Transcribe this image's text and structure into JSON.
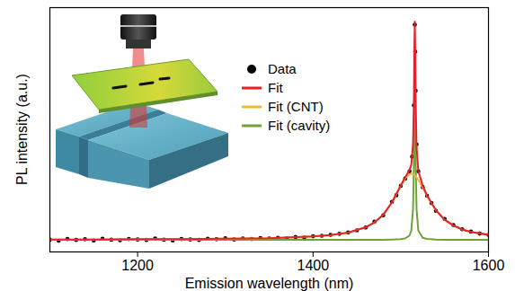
{
  "chart_data": {
    "type": "line",
    "xlabel": "Emission wavelength (nm)",
    "ylabel": "PL intensity (a.u.)",
    "xlim": [
      1100,
      1600
    ],
    "xticks": [
      1200,
      1400,
      1600
    ],
    "ylim": [
      0,
      1
    ],
    "yticks": [],
    "tick_labels": "x",
    "legend": "center",
    "series": [
      {
        "name": "Data",
        "type": "scatter",
        "marker": "circle",
        "color": "#000000",
        "x": [
          1100,
          1110,
          1120,
          1130,
          1140,
          1150,
          1160,
          1170,
          1180,
          1190,
          1200,
          1210,
          1220,
          1230,
          1240,
          1250,
          1260,
          1270,
          1280,
          1290,
          1300,
          1310,
          1320,
          1330,
          1340,
          1350,
          1360,
          1370,
          1380,
          1390,
          1400,
          1410,
          1420,
          1430,
          1440,
          1450,
          1460,
          1470,
          1480,
          1490,
          1495,
          1500,
          1505,
          1510,
          1513,
          1515,
          1516,
          1516.5,
          1517,
          1518,
          1520,
          1525,
          1530,
          1535,
          1540,
          1550,
          1560,
          1570,
          1580,
          1590,
          1600
        ],
        "values": [
          0.05,
          0.046,
          0.053,
          0.049,
          0.052,
          0.047,
          0.054,
          0.05,
          0.048,
          0.053,
          0.051,
          0.049,
          0.055,
          0.05,
          0.047,
          0.053,
          0.051,
          0.049,
          0.054,
          0.052,
          0.056,
          0.051,
          0.055,
          0.053,
          0.057,
          0.055,
          0.058,
          0.056,
          0.061,
          0.059,
          0.064,
          0.066,
          0.07,
          0.074,
          0.08,
          0.088,
          0.1,
          0.124,
          0.15,
          0.205,
          0.232,
          0.27,
          0.3,
          0.33,
          0.39,
          0.6,
          0.93,
          0.82,
          0.66,
          0.44,
          0.33,
          0.265,
          0.23,
          0.2,
          0.168,
          0.135,
          0.11,
          0.093,
          0.083,
          0.075,
          0.07
        ]
      },
      {
        "name": "Fit",
        "type": "line",
        "color": "#e8202a",
        "x": [
          1100,
          1150,
          1200,
          1250,
          1300,
          1350,
          1400,
          1420,
          1440,
          1460,
          1470,
          1480,
          1490,
          1500,
          1505,
          1510,
          1512,
          1514,
          1515,
          1515.5,
          1516,
          1516.5,
          1517,
          1518,
          1520,
          1525,
          1530,
          1540,
          1550,
          1560,
          1570,
          1580,
          1600
        ],
        "values": [
          0.051,
          0.051,
          0.052,
          0.052,
          0.054,
          0.056,
          0.063,
          0.069,
          0.079,
          0.101,
          0.121,
          0.152,
          0.203,
          0.272,
          0.305,
          0.335,
          0.357,
          0.444,
          0.631,
          0.819,
          0.943,
          0.816,
          0.625,
          0.431,
          0.332,
          0.271,
          0.231,
          0.171,
          0.132,
          0.108,
          0.092,
          0.082,
          0.07
        ]
      },
      {
        "name": "Fit (CNT)",
        "type": "line",
        "color": "#f4b43c",
        "x": [
          1100,
          1150,
          1200,
          1250,
          1300,
          1350,
          1400,
          1420,
          1440,
          1460,
          1470,
          1480,
          1490,
          1500,
          1505,
          1510,
          1512,
          1514,
          1515,
          1515.5,
          1516,
          1516.5,
          1517,
          1518,
          1520,
          1525,
          1530,
          1540,
          1550,
          1560,
          1570,
          1580,
          1600
        ],
        "values": [
          0.051,
          0.051,
          0.052,
          0.052,
          0.054,
          0.056,
          0.063,
          0.069,
          0.079,
          0.101,
          0.121,
          0.152,
          0.202,
          0.27,
          0.3,
          0.318,
          0.32,
          0.318,
          0.316,
          0.315,
          0.313,
          0.312,
          0.31,
          0.305,
          0.295,
          0.263,
          0.228,
          0.17,
          0.132,
          0.108,
          0.092,
          0.082,
          0.07
        ]
      },
      {
        "name": "Fit (cavity)",
        "type": "line",
        "color": "#6fa33a",
        "x": [
          1100,
          1150,
          1200,
          1250,
          1300,
          1350,
          1400,
          1420,
          1440,
          1460,
          1470,
          1480,
          1490,
          1500,
          1505,
          1510,
          1512,
          1514,
          1515,
          1515.5,
          1516,
          1516.5,
          1517,
          1518,
          1520,
          1525,
          1530,
          1540,
          1550,
          1560,
          1570,
          1580,
          1600
        ],
        "values": [
          0.05,
          0.05,
          0.05,
          0.05,
          0.05,
          0.05,
          0.05,
          0.05,
          0.05,
          0.05,
          0.05,
          0.05,
          0.051,
          0.052,
          0.055,
          0.067,
          0.087,
          0.176,
          0.365,
          0.554,
          0.68,
          0.554,
          0.365,
          0.176,
          0.087,
          0.058,
          0.053,
          0.051,
          0.05,
          0.05,
          0.05,
          0.05,
          0.05
        ]
      }
    ]
  }
}
